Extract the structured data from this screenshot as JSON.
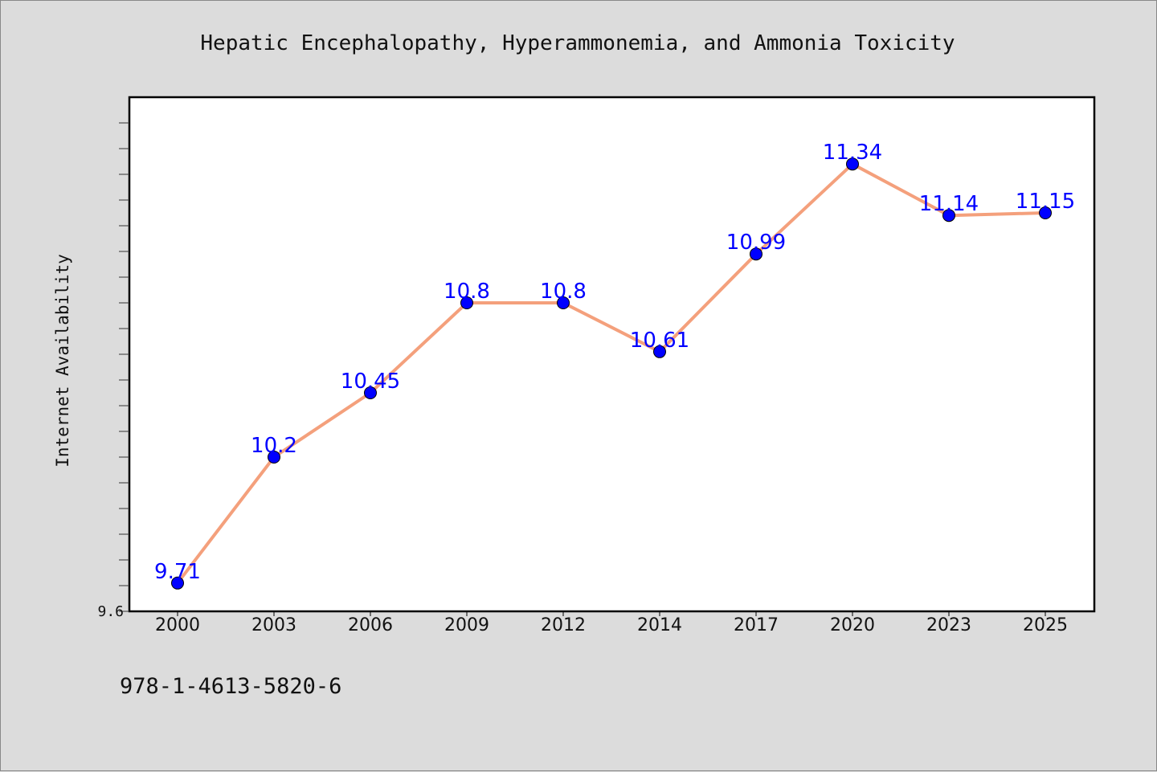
{
  "chart_data": {
    "type": "line",
    "title": "Hepatic Encephalopathy, Hyperammonemia, and Ammonia Toxicity",
    "xlabel": "",
    "ylabel": "Internet Availability",
    "categories": [
      "2000",
      "2003",
      "2006",
      "2009",
      "2012",
      "2014",
      "2017",
      "2020",
      "2023",
      "2025"
    ],
    "values": [
      9.71,
      10.2,
      10.45,
      10.8,
      10.8,
      10.61,
      10.99,
      11.34,
      11.14,
      11.15
    ],
    "data_labels": [
      "9.71",
      "10.2",
      "10.45",
      "10.8",
      "10.8",
      "10.61",
      "10.99",
      "11.34",
      "11.14",
      "11.15"
    ],
    "ylim": [
      9.6,
      11.6
    ],
    "ytick_labels": [
      "9.6"
    ],
    "grid": false,
    "line_color": "#f4a07c",
    "marker_color": "#0000ff",
    "label_color": "#0000ff"
  },
  "footer": {
    "isbn": "978-1-4613-5820-6"
  }
}
